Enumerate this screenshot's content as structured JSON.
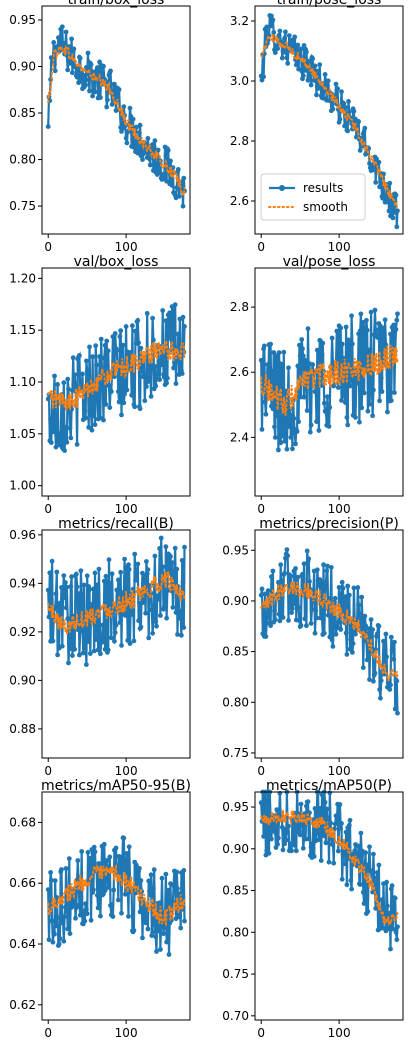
{
  "chart_data": [
    {
      "type": "line",
      "title": "train/box_loss",
      "xlim": [
        -8,
        182
      ],
      "ylim": [
        0.72,
        0.965
      ],
      "xticks": [
        0,
        100
      ],
      "xtick_labels": [
        "0",
        "100"
      ],
      "yticks": [
        0.75,
        0.8,
        0.85,
        0.9,
        0.95
      ],
      "ytick_labels": [
        "0.75",
        "0.80",
        "0.85",
        "0.90",
        "0.95"
      ],
      "series": [
        {
          "name": "results",
          "trend": [
            [
              0,
              0.83
            ],
            [
              5,
              0.91
            ],
            [
              15,
              0.925
            ],
            [
              40,
              0.9
            ],
            [
              80,
              0.875
            ],
            [
              100,
              0.84
            ],
            [
              130,
              0.81
            ],
            [
              160,
              0.785
            ],
            [
              175,
              0.765
            ]
          ],
          "noise": 0.022
        },
        {
          "name": "smooth",
          "trend": [
            [
              0,
              0.86
            ],
            [
              8,
              0.915
            ],
            [
              20,
              0.92
            ],
            [
              40,
              0.9
            ],
            [
              80,
              0.875
            ],
            [
              100,
              0.84
            ],
            [
              130,
              0.81
            ],
            [
              160,
              0.785
            ],
            [
              175,
              0.765
            ]
          ],
          "noise": 0.006
        }
      ]
    },
    {
      "type": "line",
      "title": "train/pose_loss",
      "xlim": [
        -8,
        182
      ],
      "ylim": [
        2.49,
        3.25
      ],
      "xticks": [
        0,
        100
      ],
      "xtick_labels": [
        "0",
        "100"
      ],
      "yticks": [
        2.6,
        2.8,
        3.0,
        3.2
      ],
      "ytick_labels": [
        "2.6",
        "2.8",
        "3.0",
        "3.2"
      ],
      "legend": {
        "entries": [
          "results",
          "smooth"
        ],
        "placement": "lower-right"
      },
      "series": [
        {
          "name": "results",
          "trend": [
            [
              0,
              3.0
            ],
            [
              8,
              3.18
            ],
            [
              30,
              3.12
            ],
            [
              60,
              3.05
            ],
            [
              90,
              2.95
            ],
            [
              120,
              2.85
            ],
            [
              150,
              2.7
            ],
            [
              175,
              2.55
            ]
          ],
          "noise": 0.06
        },
        {
          "name": "smooth",
          "trend": [
            [
              0,
              3.08
            ],
            [
              10,
              3.15
            ],
            [
              30,
              3.12
            ],
            [
              60,
              3.05
            ],
            [
              90,
              2.95
            ],
            [
              120,
              2.85
            ],
            [
              150,
              2.7
            ],
            [
              175,
              2.57
            ]
          ],
          "noise": 0.015
        }
      ]
    },
    {
      "type": "line",
      "title": "val/box_loss",
      "xlim": [
        -8,
        182
      ],
      "ylim": [
        0.99,
        1.21
      ],
      "xticks": [
        0,
        100
      ],
      "xtick_labels": [
        "0",
        "100"
      ],
      "yticks": [
        1.0,
        1.05,
        1.1,
        1.15,
        1.2
      ],
      "ytick_labels": [
        "1.00",
        "1.05",
        "1.10",
        "1.15",
        "1.20"
      ],
      "series": [
        {
          "name": "results",
          "trend": [
            [
              0,
              1.07
            ],
            [
              30,
              1.08
            ],
            [
              60,
              1.1
            ],
            [
              100,
              1.11
            ],
            [
              140,
              1.13
            ],
            [
              175,
              1.13
            ]
          ],
          "noise": 0.045
        },
        {
          "name": "smooth",
          "trend": [
            [
              0,
              1.085
            ],
            [
              30,
              1.08
            ],
            [
              60,
              1.1
            ],
            [
              100,
              1.115
            ],
            [
              140,
              1.13
            ],
            [
              175,
              1.13
            ]
          ],
          "noise": 0.01
        }
      ]
    },
    {
      "type": "line",
      "title": "val/pose_loss",
      "xlim": [
        -8,
        182
      ],
      "ylim": [
        2.22,
        2.92
      ],
      "xticks": [
        0,
        100
      ],
      "xtick_labels": [
        "0",
        "100"
      ],
      "yticks": [
        2.4,
        2.6,
        2.8
      ],
      "ytick_labels": [
        "2.4",
        "2.6",
        "2.8"
      ],
      "series": [
        {
          "name": "results",
          "trend": [
            [
              0,
              2.58
            ],
            [
              30,
              2.5
            ],
            [
              60,
              2.57
            ],
            [
              100,
              2.6
            ],
            [
              140,
              2.62
            ],
            [
              175,
              2.65
            ]
          ],
          "noise": 0.17
        },
        {
          "name": "smooth",
          "trend": [
            [
              0,
              2.57
            ],
            [
              30,
              2.5
            ],
            [
              60,
              2.58
            ],
            [
              100,
              2.6
            ],
            [
              140,
              2.62
            ],
            [
              175,
              2.66
            ]
          ],
          "noise": 0.04
        }
      ]
    },
    {
      "type": "line",
      "title": "metrics/recall(B)",
      "xlim": [
        -8,
        182
      ],
      "ylim": [
        0.868,
        0.962
      ],
      "xticks": [
        0,
        100
      ],
      "xtick_labels": [
        "0",
        "100"
      ],
      "yticks": [
        0.88,
        0.9,
        0.92,
        0.94,
        0.96
      ],
      "ytick_labels": [
        "0.88",
        "0.90",
        "0.92",
        "0.94",
        "0.96"
      ],
      "series": [
        {
          "name": "results",
          "trend": [
            [
              0,
              0.93
            ],
            [
              40,
              0.925
            ],
            [
              80,
              0.93
            ],
            [
              120,
              0.935
            ],
            [
              150,
              0.94
            ],
            [
              175,
              0.935
            ]
          ],
          "noise": 0.02
        },
        {
          "name": "smooth",
          "trend": [
            [
              0,
              0.93
            ],
            [
              20,
              0.922
            ],
            [
              40,
              0.925
            ],
            [
              80,
              0.93
            ],
            [
              120,
              0.935
            ],
            [
              150,
              0.942
            ],
            [
              175,
              0.935
            ]
          ],
          "noise": 0.004
        }
      ]
    },
    {
      "type": "line",
      "title": "metrics/precision(P)",
      "xlim": [
        -8,
        182
      ],
      "ylim": [
        0.745,
        0.97
      ],
      "xticks": [
        0,
        100
      ],
      "xtick_labels": [
        "0",
        "100"
      ],
      "yticks": [
        0.75,
        0.8,
        0.85,
        0.9,
        0.95
      ],
      "ytick_labels": [
        "0.75",
        "0.80",
        "0.85",
        "0.90",
        "0.95"
      ],
      "series": [
        {
          "name": "results",
          "trend": [
            [
              0,
              0.89
            ],
            [
              30,
              0.915
            ],
            [
              60,
              0.91
            ],
            [
              100,
              0.89
            ],
            [
              130,
              0.87
            ],
            [
              160,
              0.83
            ],
            [
              175,
              0.82
            ]
          ],
          "noise": 0.04
        },
        {
          "name": "smooth",
          "trend": [
            [
              0,
              0.89
            ],
            [
              30,
              0.915
            ],
            [
              60,
              0.91
            ],
            [
              100,
              0.89
            ],
            [
              130,
              0.87
            ],
            [
              160,
              0.83
            ],
            [
              175,
              0.825
            ]
          ],
          "noise": 0.008
        }
      ]
    },
    {
      "type": "line",
      "title": "metrics/mAP50-95(B)",
      "xlim": [
        -8,
        182
      ],
      "ylim": [
        0.615,
        0.69
      ],
      "xticks": [
        0,
        100
      ],
      "xtick_labels": [
        "0",
        "100"
      ],
      "yticks": [
        0.62,
        0.64,
        0.66,
        0.68
      ],
      "ytick_labels": [
        "0.62",
        "0.64",
        "0.66",
        "0.68"
      ],
      "series": [
        {
          "name": "results",
          "trend": [
            [
              0,
              0.652
            ],
            [
              30,
              0.655
            ],
            [
              60,
              0.662
            ],
            [
              90,
              0.663
            ],
            [
              130,
              0.652
            ],
            [
              160,
              0.65
            ],
            [
              175,
              0.655
            ]
          ],
          "noise": 0.014
        },
        {
          "name": "smooth",
          "trend": [
            [
              0,
              0.652
            ],
            [
              20,
              0.656
            ],
            [
              60,
              0.663
            ],
            [
              90,
              0.663
            ],
            [
              130,
              0.653
            ],
            [
              150,
              0.648
            ],
            [
              175,
              0.655
            ]
          ],
          "noise": 0.003
        }
      ]
    },
    {
      "type": "line",
      "title": "metrics/mAP50(P)",
      "xlim": [
        -8,
        182
      ],
      "ylim": [
        0.695,
        0.968
      ],
      "xticks": [
        0,
        100
      ],
      "xtick_labels": [
        "0",
        "100"
      ],
      "yticks": [
        0.7,
        0.75,
        0.8,
        0.85,
        0.9,
        0.95
      ],
      "ytick_labels": [
        "0.70",
        "0.75",
        "0.80",
        "0.85",
        "0.90",
        "0.95"
      ],
      "series": [
        {
          "name": "results",
          "trend": [
            [
              0,
              0.935
            ],
            [
              40,
              0.94
            ],
            [
              80,
              0.93
            ],
            [
              110,
              0.9
            ],
            [
              140,
              0.86
            ],
            [
              160,
              0.82
            ],
            [
              175,
              0.82
            ]
          ],
          "noise": 0.045
        },
        {
          "name": "smooth",
          "trend": [
            [
              0,
              0.935
            ],
            [
              40,
              0.94
            ],
            [
              80,
              0.93
            ],
            [
              110,
              0.9
            ],
            [
              140,
              0.86
            ],
            [
              160,
              0.81
            ],
            [
              175,
              0.82
            ]
          ],
          "noise": 0.008
        }
      ]
    }
  ],
  "colors": {
    "results": "#1f77b4",
    "smooth": "#ff7f0e",
    "axes": "#000000"
  }
}
